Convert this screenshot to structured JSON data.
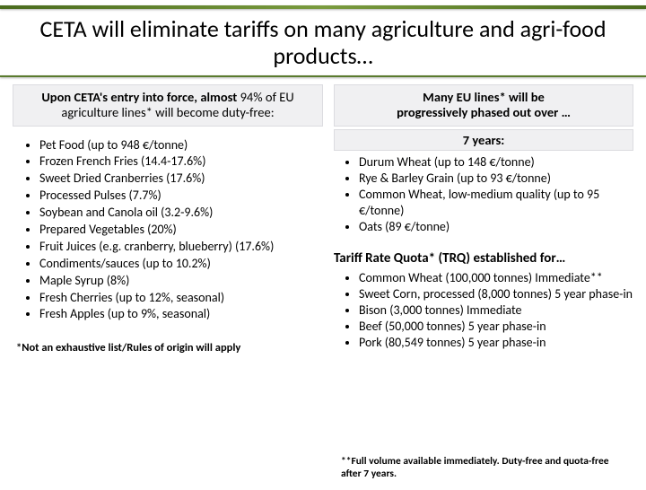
{
  "title": "CETA will eliminate tariffs on many agriculture and agri-food products…",
  "left": {
    "band_bold_prefix": "Upon CETA's entry into force, almost",
    "band_rest": " 94% of EU agriculture lines* will become duty-free:",
    "items": [
      "Pet Food (up to 948 €/tonne)",
      "Frozen French Fries (14.4-17.6%)",
      "Sweet Dried Cranberries (17.6%)",
      "Processed Pulses (7.7%)",
      "Soybean and Canola oil (3.2-9.6%)",
      "Prepared Vegetables (20%)",
      "Fruit Juices (e.g. cranberry, blueberry) (17.6%)",
      "Condiments/sauces (up to 10.2%)",
      "Maple Syrup (8%)",
      "Fresh Cherries (up to 12%, seasonal)",
      "Fresh Apples (up to 9%, seasonal)"
    ],
    "foot": "*Not an exhaustive list/Rules of origin will apply"
  },
  "right": {
    "band_line1": "Many EU lines* will be",
    "band_line2": "progressively phased out over …",
    "years_label": "7 years:",
    "years_items": [
      "Durum Wheat (up to 148 €/tonne)",
      "Rye & Barley Grain (up to 93 €/tonne)",
      "Common Wheat, low-medium quality (up to 95 €/tonne)",
      "Oats (89 €/tonne)"
    ],
    "trq_heading": "Tariff Rate Quota* (TRQ) established for…",
    "trq_items": [
      "Common Wheat (100,000 tonnes) Immediate**",
      "Sweet Corn, processed (8,000 tonnes) 5 year phase-in",
      "Bison (3,000 tonnes) Immediate",
      "Beef (50,000 tonnes) 5 year phase-in",
      "Pork (80,549 tonnes) 5 year phase-in"
    ]
  },
  "foot2": "**Full volume available immediately. Duty-free and quota-free after 7 years."
}
